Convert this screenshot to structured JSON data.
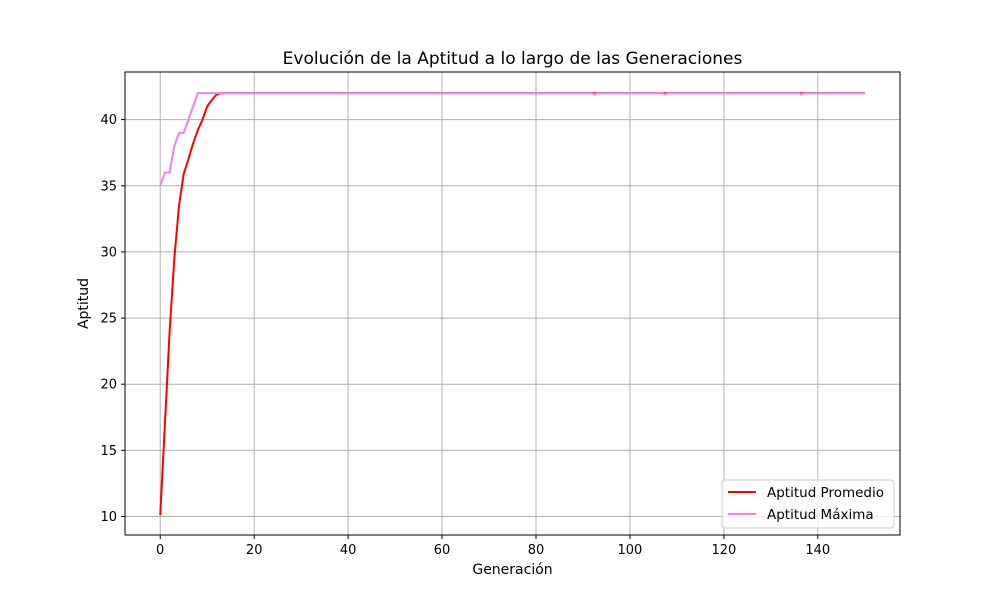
{
  "chart_data": {
    "type": "line",
    "title": "Evolución de la Aptitud a lo largo de las Generaciones",
    "xlabel": "Generación",
    "ylabel": "Aptitud",
    "xlim": [
      -7.5,
      157.5
    ],
    "ylim": [
      8.6,
      43.6
    ],
    "xticks": [
      0,
      20,
      40,
      60,
      80,
      100,
      120,
      140
    ],
    "yticks": [
      10,
      15,
      20,
      25,
      30,
      35,
      40
    ],
    "grid": true,
    "legend_position": "lower-right",
    "series": [
      {
        "name": "Aptitud Promedio",
        "color": "#ff0000",
        "points": [
          [
            0,
            10.1
          ],
          [
            1,
            17.0
          ],
          [
            2,
            24.0
          ],
          [
            3,
            29.5
          ],
          [
            4,
            33.5
          ],
          [
            5,
            35.9
          ],
          [
            6,
            37.0
          ],
          [
            7,
            38.2
          ],
          [
            8,
            39.2
          ],
          [
            9,
            40.0
          ],
          [
            10,
            41.0
          ],
          [
            11,
            41.5
          ],
          [
            12,
            41.9
          ],
          [
            13,
            42.0
          ],
          [
            150,
            42.0
          ]
        ]
      },
      {
        "name": "Aptitud Máxima",
        "color": "#ee82ee",
        "points": [
          [
            0,
            35
          ],
          [
            1,
            36
          ],
          [
            2,
            36
          ],
          [
            3,
            38
          ],
          [
            4,
            39
          ],
          [
            5,
            39
          ],
          [
            6,
            40
          ],
          [
            7,
            41
          ],
          [
            8,
            42
          ],
          [
            92,
            42
          ],
          [
            92.5,
            41.9
          ],
          [
            93,
            42
          ],
          [
            107,
            42
          ],
          [
            107.5,
            41.9
          ],
          [
            108,
            42
          ],
          [
            136,
            42
          ],
          [
            136.5,
            41.9
          ],
          [
            137,
            42
          ],
          [
            150,
            42
          ]
        ]
      }
    ]
  }
}
